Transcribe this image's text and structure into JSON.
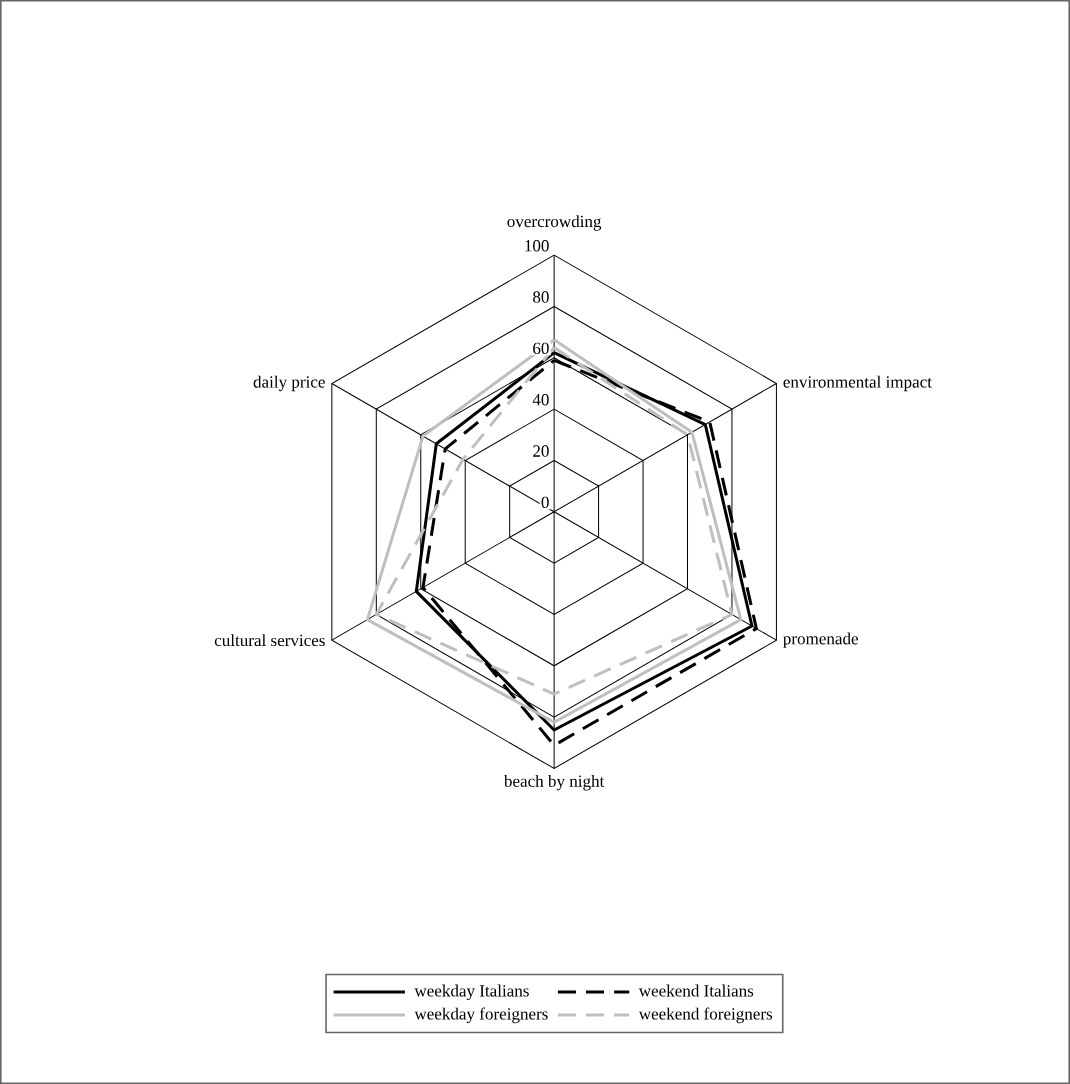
{
  "chart_data": {
    "type": "radar",
    "categories": [
      "overcrowding",
      "environmental impact",
      "promenade",
      "beach by night",
      "cultural services",
      "daily price"
    ],
    "series": [
      {
        "name": "weekday Italians",
        "color": "#000000",
        "line_style": "solid",
        "values": [
          62,
          68,
          89,
          85,
          62,
          53
        ]
      },
      {
        "name": "weekend Italians",
        "color": "#000000",
        "line_style": "dashed",
        "values": [
          59,
          70,
          91,
          91,
          59,
          49
        ]
      },
      {
        "name": "weekday foreigners",
        "color": "#bfbfbf",
        "line_style": "solid",
        "values": [
          67,
          62,
          84,
          82,
          84,
          59
        ]
      },
      {
        "name": "weekend foreigners",
        "color": "#bfbfbf",
        "line_style": "dashed",
        "values": [
          64,
          60,
          80,
          71,
          80,
          41
        ]
      }
    ],
    "ylim": [
      0,
      100
    ],
    "yticks": [
      0,
      20,
      40,
      60,
      80,
      100
    ],
    "grid": true,
    "legend": "bottom"
  }
}
